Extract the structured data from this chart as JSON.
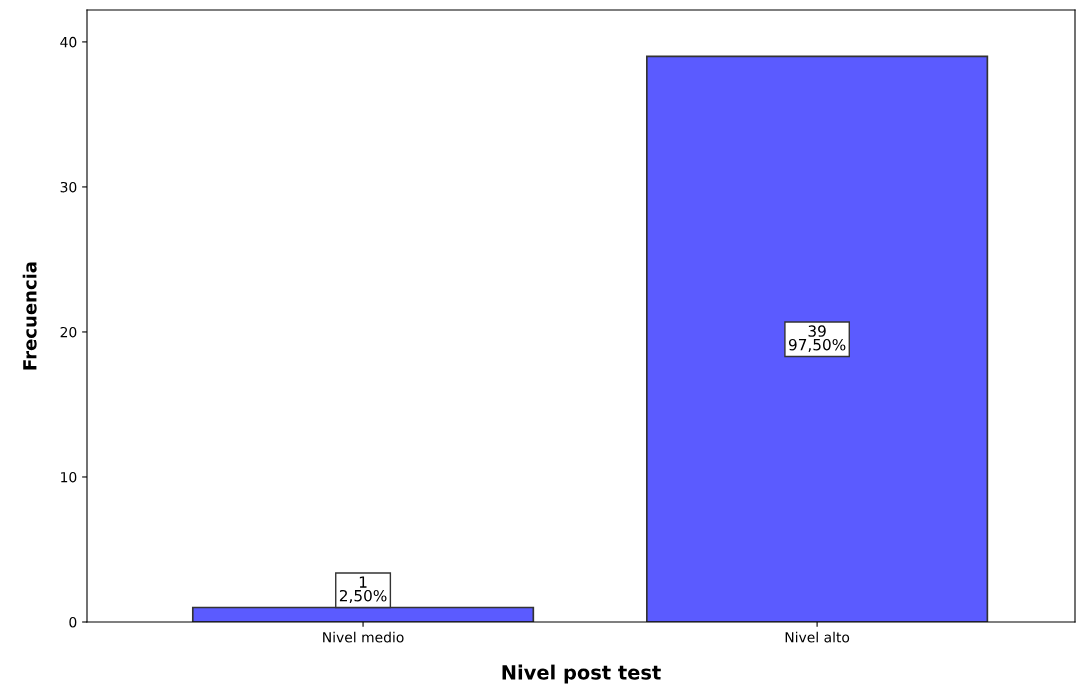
{
  "chart_data": {
    "type": "bar",
    "xlabel": "Nivel post test",
    "ylabel": "Frecuencia",
    "categories": [
      "Nivel medio",
      "Nivel alto"
    ],
    "values": [
      1,
      39
    ],
    "value_labels": [
      "1\n2,50%",
      "39\n97,50%"
    ],
    "color": "#5b5bff",
    "ylim": [
      0,
      42.2
    ],
    "yticks": [
      0,
      10,
      20,
      30,
      40
    ],
    "grid": false,
    "legend": false
  }
}
